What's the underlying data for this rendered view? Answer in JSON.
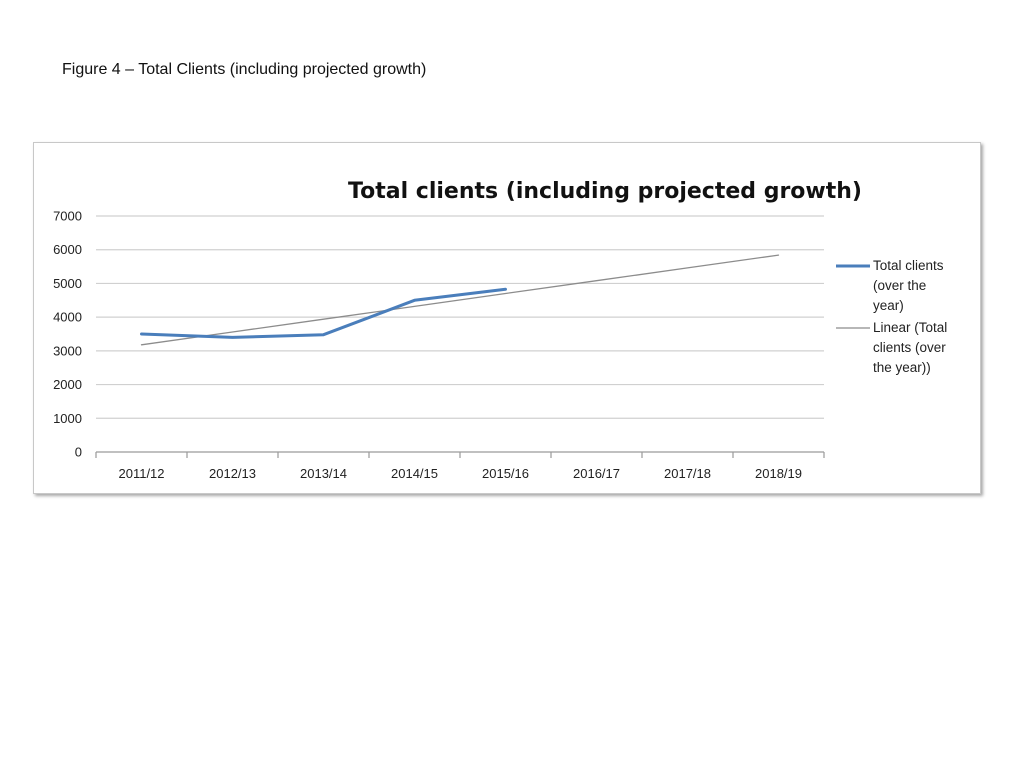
{
  "caption": "Figure 4 – Total Clients (including projected growth)",
  "chart_data": {
    "type": "line",
    "title": "Total clients (including projected growth)",
    "xlabel": "",
    "ylabel": "",
    "ylim": [
      0,
      7000
    ],
    "yticks": [
      "0",
      "1000",
      "2000",
      "3000",
      "4000",
      "5000",
      "6000",
      "7000"
    ],
    "categories": [
      "2011/12",
      "2012/13",
      "2013/14",
      "2014/15",
      "2015/16",
      "2016/17",
      "2017/18",
      "2018/19"
    ],
    "grid": true,
    "legend_position": "right",
    "series": [
      {
        "name": "Total clients (over the year)",
        "legend_lines": [
          "Total clients",
          "(over the",
          "year)"
        ],
        "color": "#4a7ebb",
        "values": [
          3500,
          3400,
          3480,
          4500,
          4830,
          null,
          null,
          null
        ]
      },
      {
        "name": "Linear (Total clients (over the year))",
        "legend_lines": [
          "Linear (Total",
          "clients (over",
          "the year))"
        ],
        "color": "#8c8c8c",
        "values": [
          3180,
          3560,
          3940,
          4320,
          4700,
          5080,
          5460,
          5840
        ]
      }
    ]
  }
}
